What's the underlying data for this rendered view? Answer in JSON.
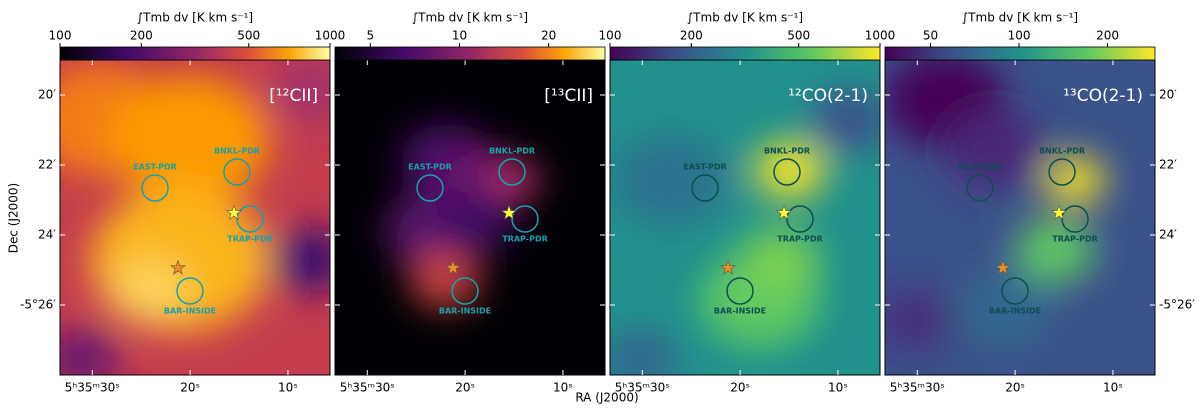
{
  "chart_data": {
    "type": "image-grid",
    "xlabel": "RA (J2000)",
    "ylabel": "Dec (J2000)",
    "xlim": [
      33.3,
      5.7
    ],
    "xticks": [
      {
        "value": 30,
        "label": "5ʰ35ᵐ30ˢ"
      },
      {
        "value": 20,
        "label": "20ˢ"
      },
      {
        "value": 10,
        "label": "10ˢ"
      }
    ],
    "ylim": [
      19,
      28
    ],
    "yticks": [
      {
        "value": 20,
        "label": "20′"
      },
      {
        "value": 22,
        "label": "22′"
      },
      {
        "value": 24,
        "label": "24′"
      },
      {
        "value": 26,
        "label": "-5°26′"
      }
    ],
    "regions": [
      "EAST-PDR",
      "BNKL-PDR",
      "TRAP-PDR",
      "BAR-INSIDE"
    ],
    "colorbar_label": "∫Tmb dv  [K km s⁻¹]",
    "panels": [
      {
        "title": "[¹²CII]",
        "colormap": "inferno",
        "clim": [
          100,
          1000
        ],
        "cticks": [
          100,
          200,
          500,
          1000
        ],
        "scale": "log"
      },
      {
        "title": "[¹³CII]",
        "colormap": "inferno",
        "clim": [
          3.8,
          31
        ],
        "cticks": [
          5,
          10,
          20
        ],
        "scale": "log"
      },
      {
        "title": "¹²CO(2-1)",
        "colormap": "viridis",
        "clim": [
          100,
          1000
        ],
        "cticks": [
          100,
          200,
          500,
          1000
        ],
        "scale": "log"
      },
      {
        "title": "¹³CO(2-1)",
        "colormap": "viridis",
        "clim": [
          35,
          290
        ],
        "cticks": [
          50,
          100,
          200
        ],
        "scale": "log"
      }
    ]
  }
}
